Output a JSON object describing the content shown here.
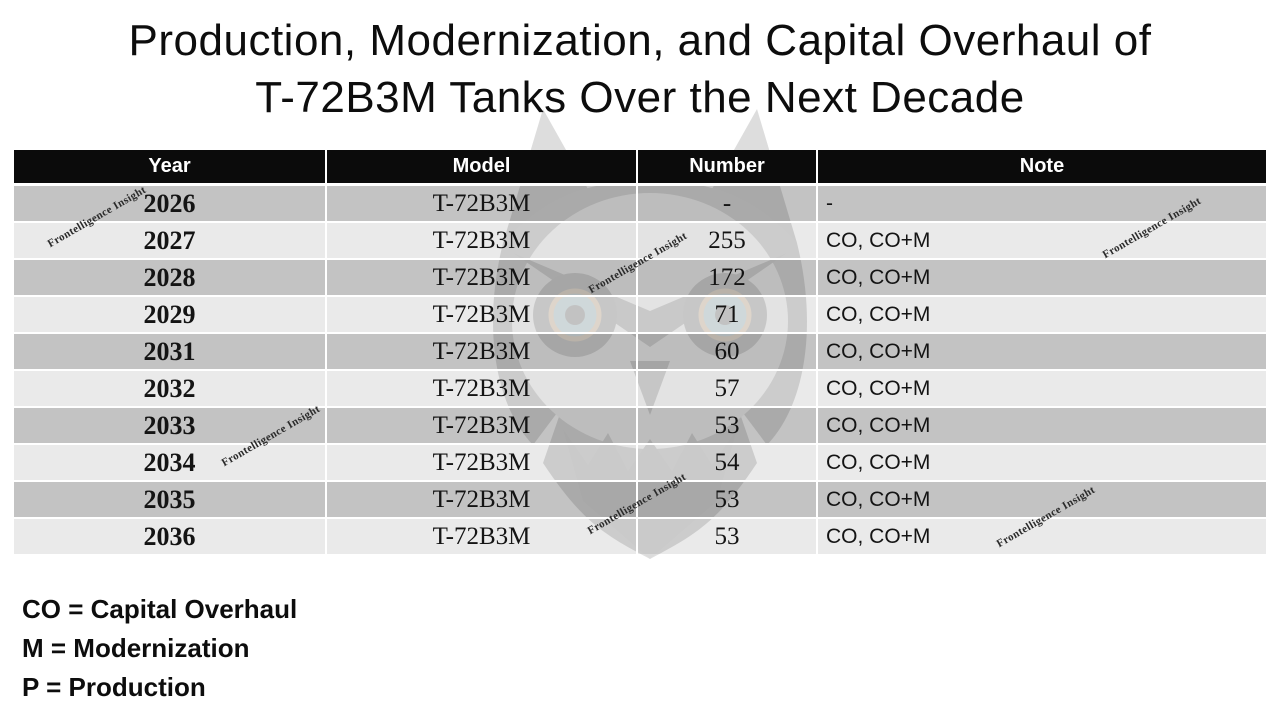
{
  "title": {
    "line1": "Production, Modernization, and Capital Overhaul of",
    "line2": "T-72B3M Tanks Over the Next Decade"
  },
  "table": {
    "columns": [
      "Year",
      "Model",
      "Number",
      "Note"
    ],
    "rows": [
      {
        "year": "2026",
        "model": "T-72B3M",
        "number": "-",
        "note": "-"
      },
      {
        "year": "2027",
        "model": "T-72B3M",
        "number": "255",
        "note": "CO, CO+M"
      },
      {
        "year": "2028",
        "model": "T-72B3M",
        "number": "172",
        "note": "CO, CO+M"
      },
      {
        "year": "2029",
        "model": "T-72B3M",
        "number": "71",
        "note": "CO, CO+M"
      },
      {
        "year": "2031",
        "model": "T-72B3M",
        "number": "60",
        "note": "CO, CO+M"
      },
      {
        "year": "2032",
        "model": "T-72B3M",
        "number": "57",
        "note": "CO, CO+M"
      },
      {
        "year": "2033",
        "model": "T-72B3M",
        "number": "53",
        "note": "CO, CO+M"
      },
      {
        "year": "2034",
        "model": "T-72B3M",
        "number": "54",
        "note": "CO, CO+M"
      },
      {
        "year": "2035",
        "model": "T-72B3M",
        "number": "53",
        "note": "CO, CO+M"
      },
      {
        "year": "2036",
        "model": "T-72B3M",
        "number": "53",
        "note": "CO, CO+M"
      }
    ]
  },
  "legend": {
    "lines": [
      "CO = Capital Overhaul",
      "M = Modernization",
      "P = Production"
    ]
  },
  "watermark": {
    "text": "Frontelligence Insight"
  },
  "branding": {
    "background_icon": "owl-logo"
  },
  "colors": {
    "header_bg": "#0b0b0b",
    "header_text": "#ffffff",
    "row_dark": "#c4c4c4",
    "row_light": "#e9e9e9",
    "body_text": "#141414",
    "watermark_text": "#2a2a2a"
  }
}
